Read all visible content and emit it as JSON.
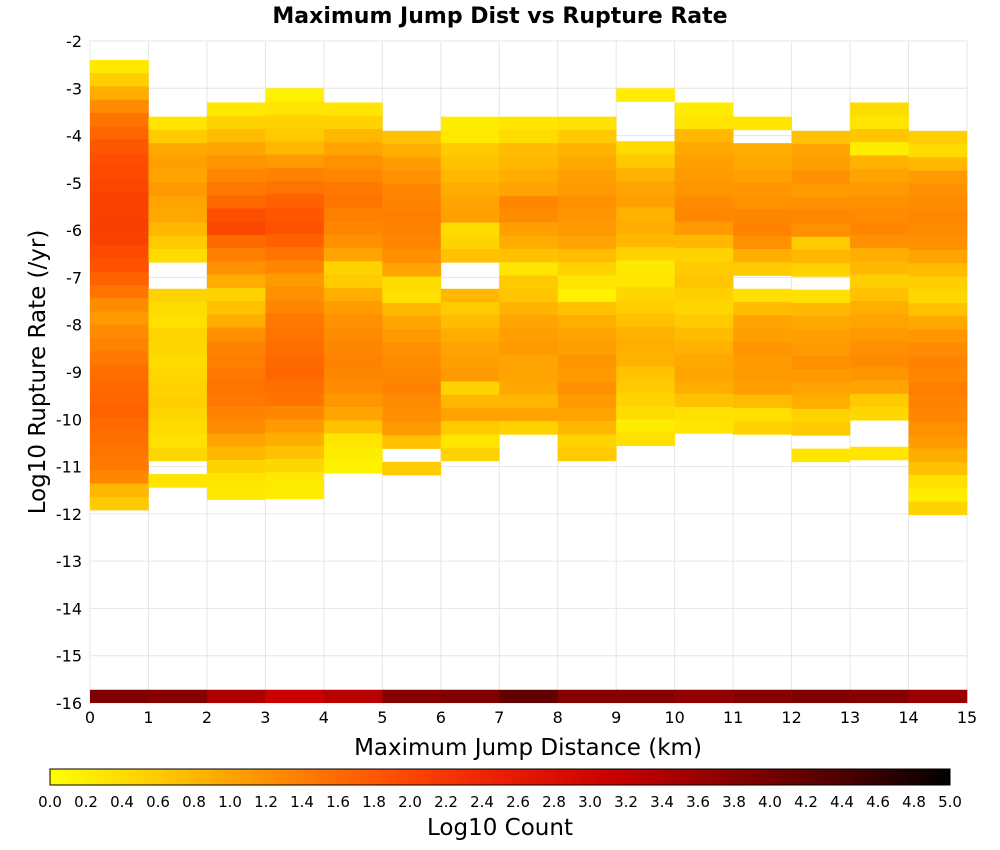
{
  "chart_data": {
    "type": "heatmap",
    "title": "Maximum Jump Dist vs Rupture Rate",
    "xlabel": "Maximum Jump Distance (km)",
    "ylabel": "Log10 Rupture Rate (/yr)",
    "xlim": [
      0,
      15
    ],
    "ylim": [
      -16,
      -2
    ],
    "x_ticks": [
      "0",
      "1",
      "2",
      "3",
      "4",
      "5",
      "6",
      "7",
      "8",
      "9",
      "10",
      "11",
      "12",
      "13",
      "14",
      "15"
    ],
    "y_ticks": [
      "-2",
      "-3",
      "-4",
      "-5",
      "-6",
      "-7",
      "-8",
      "-9",
      "-10",
      "-11",
      "-12",
      "-13",
      "-14",
      "-15",
      "-16"
    ],
    "bin_width_x": 1,
    "bin_height_y": 0.28,
    "colorscale": {
      "label": "Log10 Count",
      "range": [
        0,
        5
      ],
      "tick_labels": [
        "0.0",
        "0.2",
        "0.4",
        "0.6",
        "0.8",
        "1.0",
        "1.2",
        "1.4",
        "1.6",
        "1.8",
        "2.0",
        "2.2",
        "2.4",
        "2.6",
        "2.8",
        "3.0",
        "3.2",
        "3.4",
        "3.6",
        "3.8",
        "4.0",
        "4.2",
        "4.4",
        "4.6",
        "4.8",
        "5.0"
      ],
      "stops": [
        "#ffff00",
        "#ffc800",
        "#ff8c00",
        "#ff5000",
        "#eb1e00",
        "#c80000",
        "#8c0000",
        "#500000",
        "#000000"
      ]
    },
    "columns": [
      {
        "x": 0,
        "y_top": -2.4,
        "values": [
          0.25,
          0.55,
          0.9,
          1.25,
          1.5,
          1.65,
          1.8,
          1.9,
          1.95,
          2.0,
          2.05,
          2.05,
          2.1,
          2.05,
          1.95,
          1.85,
          1.7,
          1.5,
          1.25,
          1.1,
          1.25,
          1.35,
          1.45,
          1.55,
          1.6,
          1.65,
          1.7,
          1.6,
          1.55,
          1.5,
          1.45,
          1.3,
          0.8,
          0.6
        ],
        "bottom_bin": 3.9
      },
      {
        "x": 1,
        "y_top": -3.6,
        "values": [
          0.3,
          0.6,
          0.95,
          1.05,
          1.0,
          1.1,
          1.0,
          0.95,
          0.8,
          0.6,
          0.4,
          null,
          null,
          0.5,
          0.4,
          0.35,
          0.5,
          0.45,
          0.4,
          0.45,
          0.5,
          0.55,
          0.45,
          0.4,
          0.35,
          0.45,
          null,
          0.3
        ],
        "bottom_bin": 3.8
      },
      {
        "x": 2,
        "y_top": -3.3,
        "values": [
          0.25,
          0.5,
          0.75,
          1.0,
          1.15,
          1.3,
          1.45,
          1.6,
          1.9,
          2.0,
          1.6,
          1.4,
          1.2,
          0.9,
          0.5,
          0.7,
          0.9,
          1.2,
          1.35,
          1.4,
          1.45,
          1.5,
          1.45,
          1.35,
          1.25,
          1.0,
          0.8,
          0.5,
          0.3,
          0.25
        ],
        "bottom_bin": 3.4
      },
      {
        "x": 3,
        "y_top": -3.0,
        "values": [
          0.15,
          0.3,
          0.5,
          0.6,
          0.8,
          1.1,
          1.35,
          1.5,
          1.7,
          1.8,
          1.85,
          1.7,
          1.5,
          1.3,
          1.1,
          1.2,
          1.3,
          1.45,
          1.5,
          1.55,
          1.6,
          1.65,
          1.55,
          1.5,
          1.3,
          1.1,
          0.9,
          0.7,
          0.45,
          0.25,
          0.2
        ],
        "bottom_bin": 3.1
      },
      {
        "x": 4,
        "y_top": -3.3,
        "values": [
          0.3,
          0.5,
          0.8,
          1.0,
          1.2,
          1.3,
          1.45,
          1.5,
          1.4,
          1.3,
          1.2,
          1.0,
          0.5,
          0.6,
          0.9,
          1.1,
          1.2,
          1.25,
          1.3,
          1.35,
          1.3,
          1.25,
          1.15,
          1.0,
          0.7,
          0.3,
          0.2,
          0.15
        ],
        "bottom_bin": 3.3
      },
      {
        "x": 5,
        "y_top": -3.9,
        "values": [
          0.7,
          0.9,
          1.1,
          1.2,
          1.3,
          1.35,
          1.4,
          1.35,
          1.3,
          1.2,
          1.0,
          0.4,
          0.35,
          0.8,
          1.0,
          1.1,
          1.2,
          1.25,
          1.3,
          1.35,
          1.25,
          1.2,
          1.1,
          0.7,
          null,
          0.6
        ],
        "bottom_bin": 3.8
      },
      {
        "x": 6,
        "y_top": -3.6,
        "values": [
          0.2,
          0.25,
          0.6,
          0.7,
          0.8,
          0.9,
          1.0,
          1.05,
          0.4,
          0.5,
          0.7,
          null,
          null,
          0.8,
          0.6,
          0.75,
          0.9,
          1.0,
          1.05,
          1.1,
          0.5,
          0.8,
          1.0,
          0.6,
          0.3,
          0.5
        ],
        "bottom_bin": 3.9
      },
      {
        "x": 7,
        "y_top": -3.6,
        "values": [
          0.3,
          0.4,
          0.75,
          0.8,
          0.9,
          1.0,
          1.3,
          1.25,
          1.05,
          0.9,
          0.7,
          0.3,
          0.6,
          0.65,
          0.85,
          1.0,
          1.05,
          1.1,
          1.0,
          1.0,
          0.95,
          0.8,
          1.0,
          0.5
        ],
        "bottom_bin": 4.2
      },
      {
        "x": 8,
        "y_top": -3.6,
        "values": [
          0.35,
          0.6,
          0.85,
          0.95,
          1.05,
          1.1,
          1.2,
          1.15,
          1.1,
          1.0,
          0.75,
          0.5,
          0.3,
          0.15,
          0.7,
          0.9,
          1.0,
          1.05,
          1.15,
          1.1,
          1.2,
          1.1,
          1.0,
          0.8,
          0.5,
          0.6
        ],
        "bottom_bin": 3.8
      },
      {
        "x": 9,
        "y_top": -3.0,
        "values": [
          0.2,
          null,
          null,
          null,
          0.4,
          0.6,
          0.85,
          1.0,
          1.05,
          0.85,
          0.9,
          0.8,
          0.5,
          0.25,
          0.3,
          0.45,
          0.55,
          0.7,
          0.85,
          0.9,
          0.85,
          0.7,
          0.6,
          0.5,
          0.4,
          0.2,
          0.35
        ],
        "bottom_bin": 3.8
      },
      {
        "x": 10,
        "y_top": -3.3,
        "values": [
          0.2,
          0.3,
          0.8,
          0.95,
          1.05,
          1.1,
          1.15,
          1.25,
          1.3,
          1.1,
          0.8,
          0.5,
          0.6,
          0.65,
          0.55,
          0.45,
          0.6,
          0.75,
          0.85,
          0.95,
          1.0,
          0.9,
          0.7,
          0.35,
          0.3
        ],
        "bottom_bin": 3.7
      },
      {
        "x": 11,
        "y_top": -3.6,
        "values": [
          0.3,
          null,
          0.9,
          0.95,
          1.05,
          1.15,
          1.2,
          1.3,
          1.35,
          1.2,
          0.9,
          0.6,
          null,
          0.35,
          0.75,
          1.0,
          1.05,
          1.15,
          1.1,
          1.1,
          1.05,
          0.75,
          0.35,
          0.5
        ],
        "bottom_bin": 3.8
      },
      {
        "x": 12,
        "y_top": -3.9,
        "values": [
          0.7,
          1.0,
          1.05,
          1.2,
          1.1,
          1.2,
          1.3,
          1.2,
          0.6,
          0.8,
          0.5,
          null,
          0.35,
          0.8,
          0.95,
          1.05,
          1.1,
          1.2,
          1.1,
          1.0,
          0.9,
          0.5,
          0.6,
          null,
          0.3
        ],
        "bottom_bin": 3.9
      },
      {
        "x": 13,
        "y_top": -3.3,
        "values": [
          0.4,
          0.3,
          0.65,
          0.2,
          0.85,
          1.0,
          1.1,
          1.2,
          1.25,
          1.3,
          1.2,
          0.9,
          0.8,
          0.55,
          0.7,
          0.9,
          1.0,
          1.1,
          1.2,
          1.25,
          1.15,
          1.0,
          0.6,
          0.45,
          null,
          null,
          0.3
        ],
        "bottom_bin": 3.8
      },
      {
        "x": 14,
        "y_top": -3.9,
        "values": [
          0.55,
          0.4,
          0.8,
          1.1,
          1.2,
          1.25,
          1.3,
          1.25,
          1.2,
          1.0,
          0.75,
          0.55,
          0.45,
          0.7,
          0.95,
          1.15,
          1.25,
          1.35,
          1.3,
          1.4,
          1.35,
          1.3,
          1.2,
          1.1,
          0.9,
          0.7,
          0.35,
          0.2,
          0.5
        ],
        "bottom_bin": 3.6
      }
    ]
  }
}
